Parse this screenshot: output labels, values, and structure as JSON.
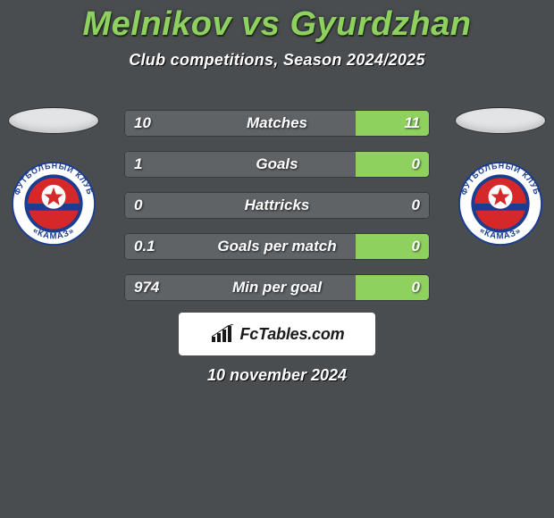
{
  "title": "Melnikov vs Gyurdzhan",
  "subtitle": "Club competitions, Season 2024/2025",
  "date_line": "10 november 2024",
  "attribution": "FcTables.com",
  "colors": {
    "background": "#4a4d50",
    "title": "#8fd15f",
    "bar_green": "#8fd15f",
    "bar_gray": "#5f6366",
    "text": "#ffffff",
    "attribution_bg": "#ffffff",
    "attribution_text": "#1a1a1a"
  },
  "badge": {
    "outer_text_top": "ФУТБОЛЬНЫЙ КЛУБ",
    "outer_text_bottom": "«КАМАЗ»",
    "ring_bg": "#ffffff",
    "ring_text": "#1a3d8f",
    "center_bg": "#d62828",
    "center_band": "#1a3d8f",
    "star_color": "#d62828"
  },
  "rows": [
    {
      "label": "Matches",
      "left": "10",
      "right": "11",
      "fill_pct": 76
    },
    {
      "label": "Goals",
      "left": "1",
      "right": "0",
      "fill_pct": 76
    },
    {
      "label": "Hattricks",
      "left": "0",
      "right": "0",
      "fill_pct": 100
    },
    {
      "label": "Goals per match",
      "left": "0.1",
      "right": "0",
      "fill_pct": 76
    },
    {
      "label": "Min per goal",
      "left": "974",
      "right": "0",
      "fill_pct": 76
    }
  ]
}
